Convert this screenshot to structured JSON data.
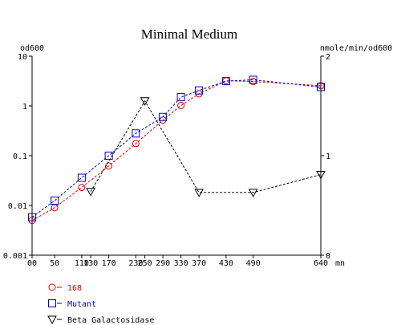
{
  "chart_data": {
    "type": "line",
    "title": "Minimal Medium",
    "x_unit": "mn",
    "x_ticks": [
      0,
      50,
      110,
      130,
      170,
      230,
      250,
      290,
      330,
      370,
      430,
      490,
      640
    ],
    "x_tick_labels": [
      "00",
      "50",
      "110",
      "130",
      "170",
      "230",
      "250",
      "290",
      "330",
      "370",
      "430",
      "490",
      "640"
    ],
    "xlim": [
      0,
      640
    ],
    "y_left": {
      "label": "od600",
      "scale": "log",
      "range": [
        0.001,
        10
      ],
      "tick_labels": [
        "0.001",
        "0.01",
        "0.1",
        "1",
        "10"
      ],
      "ticks": [
        0.001,
        0.01,
        0.1,
        1,
        10
      ]
    },
    "y_right": {
      "label": "nmole/min/od600",
      "scale": "linear",
      "range": [
        0,
        2
      ],
      "tick_labels": [
        "0",
        "1",
        "2"
      ],
      "ticks": [
        0,
        1,
        2
      ]
    },
    "series": [
      {
        "name": "168",
        "color": "#e00000",
        "marker": "circle",
        "axis": "left",
        "x": [
          0,
          50,
          110,
          170,
          230,
          290,
          330,
          370,
          430,
          490,
          640
        ],
        "values": [
          0.005,
          0.009,
          0.023,
          0.062,
          0.175,
          0.52,
          1.02,
          1.75,
          3.2,
          3.1,
          2.55
        ]
      },
      {
        "name": "Mutant",
        "color": "#0000cc",
        "marker": "square",
        "axis": "left",
        "x": [
          0,
          50,
          110,
          170,
          230,
          290,
          330,
          370,
          430,
          490,
          640
        ],
        "values": [
          0.0058,
          0.0125,
          0.036,
          0.1,
          0.28,
          0.6,
          1.5,
          2.05,
          3.15,
          3.35,
          2.4
        ]
      },
      {
        "name": "Beta Galactosidase",
        "color": "#000000",
        "marker": "triangle-down",
        "axis": "right",
        "x": [
          130,
          250,
          370,
          490,
          640
        ],
        "values": [
          0.64,
          1.55,
          0.63,
          0.63,
          0.81
        ]
      }
    ]
  }
}
